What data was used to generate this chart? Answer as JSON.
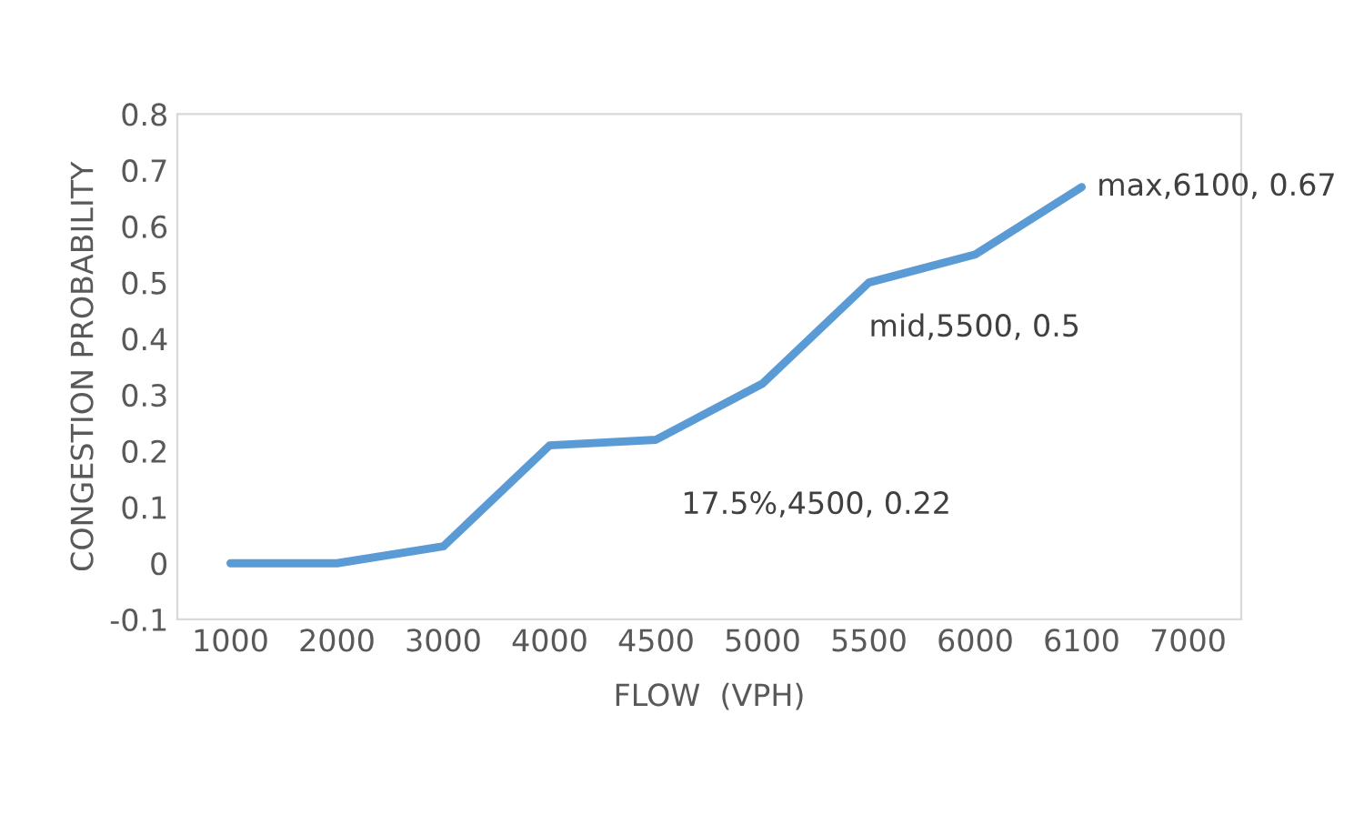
{
  "chart_data": {
    "type": "line",
    "xlabel": "FLOW  (VPH)",
    "ylabel": "CONGESTION PROBABILITY",
    "categories": [
      "1000",
      "2000",
      "3000",
      "4000",
      "4500",
      "5000",
      "5500",
      "6000",
      "6100",
      "7000"
    ],
    "series": [
      {
        "color": "#5b9bd5",
        "values": [
          0,
          0,
          0.03,
          0.21,
          0.22,
          0.32,
          0.5,
          0.55,
          0.67,
          null
        ]
      }
    ],
    "ylim": [
      -0.1,
      0.8
    ],
    "yticks": [
      -0.1,
      0,
      0.1,
      0.2,
      0.3,
      0.4,
      0.5,
      0.6,
      0.7,
      0.8
    ],
    "grid": false,
    "legend": false,
    "marker": "none",
    "line_style": "solid",
    "annotations": [
      {
        "text": "17.5%,4500, 0.22",
        "x": "4500",
        "y": 0.22
      },
      {
        "text": "mid,5500, 0.5",
        "x": "5500",
        "y": 0.5
      },
      {
        "text": "max,6100, 0.67",
        "x": "6100",
        "y": 0.67
      }
    ]
  }
}
